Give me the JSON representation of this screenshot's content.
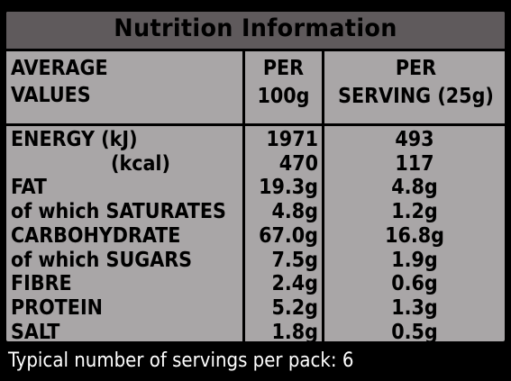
{
  "title": "Nutrition Information",
  "headers": {
    "col1_line1": "AVERAGE",
    "col1_line2": "VALUES",
    "col2_line1": "PER",
    "col2_line2": "100g",
    "col3_line1": "PER",
    "col3_line2": "SERVING (25g)"
  },
  "rows": [
    {
      "label": "ENERGY (kJ)",
      "per100": "1971",
      "serving": "493",
      "indent": false
    },
    {
      "label": "(kcal)",
      "per100": "470",
      "serving": "117",
      "indent": true
    },
    {
      "label": "FAT",
      "per100": "19.3g",
      "serving": "4.8g",
      "indent": false
    },
    {
      "label": "of which SATURATES",
      "per100": "4.8g",
      "serving": "1.2g",
      "indent": false
    },
    {
      "label": "CARBOHYDRATE",
      "per100": "67.0g",
      "serving": "16.8g",
      "indent": false
    },
    {
      "label": "of which SUGARS",
      "per100": "7.5g",
      "serving": "1.9g",
      "indent": false
    },
    {
      "label": "FIBRE",
      "per100": "2.4g",
      "serving": "0.6g",
      "indent": false
    },
    {
      "label": "PROTEIN",
      "per100": "5.2g",
      "serving": "1.3g",
      "indent": false
    },
    {
      "label": "SALT",
      "per100": "1.8g",
      "serving": "0.5g",
      "indent": false
    }
  ],
  "footer": "Typical number of servings per pack: 6",
  "colors": {
    "panel": "#a9a6a7",
    "title_bar": "#5f5a5c",
    "background": "#000000"
  }
}
